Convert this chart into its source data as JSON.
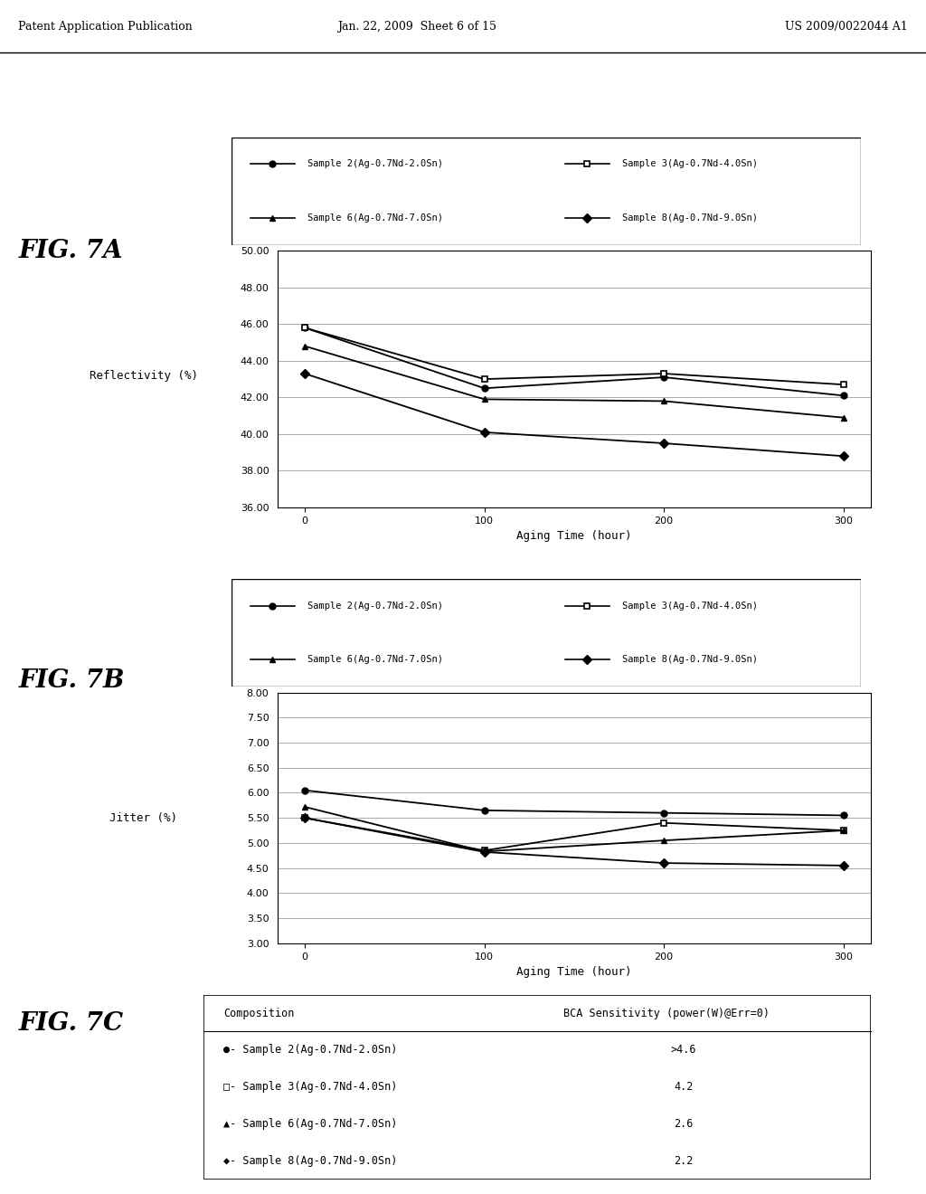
{
  "header_left": "Patent Application Publication",
  "header_mid": "Jan. 22, 2009  Sheet 6 of 15",
  "header_right": "US 2009/0022044 A1",
  "fig7a_label": "FIG. 7A",
  "fig7b_label": "FIG. 7B",
  "fig7c_label": "FIG. 7C",
  "x_values": [
    0,
    100,
    200,
    300
  ],
  "x_label": "Aging Time (hour)",
  "fig7a_ylabel": "Reflectivity (%)",
  "fig7a_ylim": [
    36.0,
    50.0
  ],
  "fig7a_yticks": [
    36.0,
    38.0,
    40.0,
    42.0,
    44.0,
    46.0,
    48.0,
    50.0
  ],
  "fig7a_data": {
    "sample2": [
      45.8,
      42.5,
      43.1,
      42.1
    ],
    "sample3": [
      45.8,
      43.0,
      43.3,
      42.7
    ],
    "sample6": [
      44.8,
      41.9,
      41.8,
      40.9
    ],
    "sample8": [
      43.3,
      40.1,
      39.5,
      38.8
    ]
  },
  "fig7b_ylabel": "Jitter (%)",
  "fig7b_ylim": [
    3.0,
    8.0
  ],
  "fig7b_yticks": [
    3.0,
    3.5,
    4.0,
    4.5,
    5.0,
    5.5,
    6.0,
    6.5,
    7.0,
    7.5,
    8.0
  ],
  "fig7b_data": {
    "sample2": [
      6.05,
      5.65,
      5.6,
      5.55
    ],
    "sample3": [
      5.5,
      4.85,
      5.4,
      5.25
    ],
    "sample6": [
      5.72,
      4.83,
      5.05,
      5.25
    ],
    "sample8": [
      5.5,
      4.82,
      4.6,
      4.55
    ]
  },
  "legend_labels": [
    "Sample 2(Ag-0.7Nd-2.0Sn)",
    "Sample 3(Ag-0.7Nd-4.0Sn)",
    "Sample 6(Ag-0.7Nd-7.0Sn)",
    "Sample 8(Ag-0.7Nd-9.0Sn)"
  ],
  "fig7c_table": {
    "header": [
      "Composition",
      "BCA Sensitivity (power(W)@Err=0)"
    ],
    "rows": [
      [
        "●- Sample 2(Ag-0.7Nd-2.0Sn)",
        ">4.6"
      ],
      [
        "□- Sample 3(Ag-0.7Nd-4.0Sn)",
        "4.2"
      ],
      [
        "▲- Sample 6(Ag-0.7Nd-7.0Sn)",
        "2.6"
      ],
      [
        "◆- Sample 8(Ag-0.7Nd-9.0Sn)",
        "2.2"
      ]
    ]
  },
  "bg_color": "#ffffff",
  "line_color": "#000000",
  "grid_color": "#aaaaaa"
}
